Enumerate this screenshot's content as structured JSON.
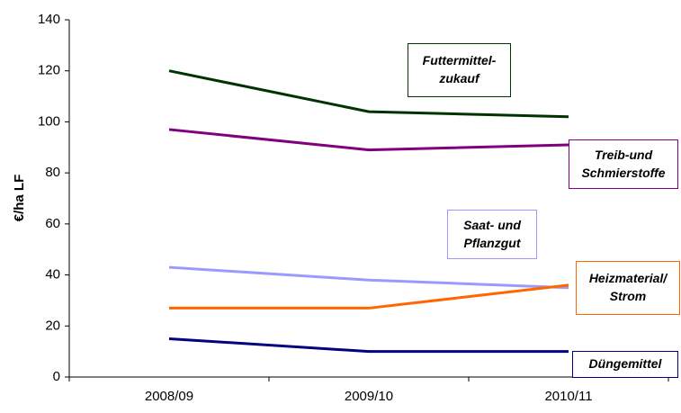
{
  "chart_data": {
    "type": "line",
    "ylabel": "€/ha LF",
    "categories": [
      "2008/09",
      "2009/10",
      "2010/11"
    ],
    "series": [
      {
        "name": "Futtermittel-\nzukauf",
        "color": "#003300",
        "values": [
          120,
          104,
          102
        ]
      },
      {
        "name": "Treib-und\nSchmierstoffe",
        "color": "#800080",
        "values": [
          97,
          89,
          91
        ]
      },
      {
        "name": "Saat- und\nPflanzgut",
        "color": "#9999ff",
        "values": [
          43,
          38,
          35
        ]
      },
      {
        "name": "Heizmaterial/\nStrom",
        "color": "#ff6600",
        "values": [
          27,
          27,
          36
        ]
      },
      {
        "name": "Düngemittel",
        "color": "#000080",
        "values": [
          15,
          10,
          10
        ]
      }
    ],
    "ylim": [
      0,
      140
    ],
    "yticks": [
      0,
      20,
      40,
      60,
      80,
      100,
      120,
      140
    ],
    "grid": false
  }
}
